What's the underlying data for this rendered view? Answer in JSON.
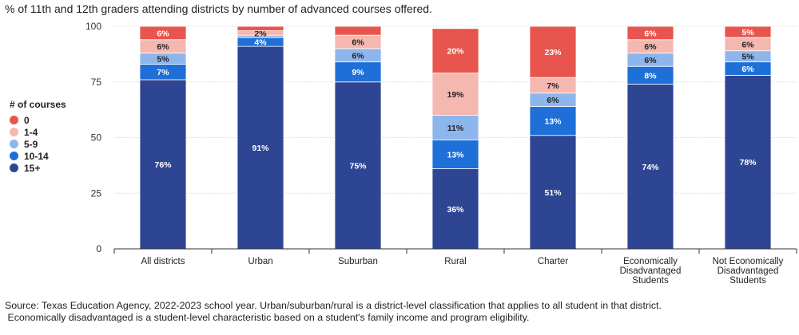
{
  "chart_data": {
    "type": "bar",
    "stacked": true,
    "title": "% of 11th and 12th graders attending districts by number of advanced courses offered.",
    "legend_title": "# of courses",
    "legend_position": "left",
    "ylim": [
      0,
      100
    ],
    "yticks": [
      0,
      25,
      50,
      75,
      100
    ],
    "grid": true,
    "categories": [
      [
        "All districts"
      ],
      [
        "Urban"
      ],
      [
        "Suburban"
      ],
      [
        "Rural"
      ],
      [
        "Charter"
      ],
      [
        "Economically",
        "Disadvantaged",
        "Students"
      ],
      [
        "Not Economically",
        "Disadvantaged",
        "Students"
      ]
    ],
    "series": [
      {
        "name": "15+",
        "color": "#2e4593",
        "values": [
          76,
          91,
          75,
          36,
          51,
          74,
          78
        ],
        "labels": [
          "76%",
          "91%",
          "75%",
          "36%",
          "51%",
          "74%",
          "78%"
        ]
      },
      {
        "name": "10-14",
        "color": "#1f6fd8",
        "values": [
          7,
          4,
          9,
          13,
          13,
          8,
          6
        ],
        "labels": [
          "7%",
          "4%",
          "9%",
          "13%",
          "13%",
          "8%",
          "6%"
        ]
      },
      {
        "name": "5-9",
        "color": "#8db6ec",
        "values": [
          5,
          1,
          6,
          11,
          6,
          6,
          5
        ],
        "labels": [
          "5%",
          "",
          "6%",
          "11%",
          "6%",
          "6%",
          "5%"
        ]
      },
      {
        "name": "1-4",
        "color": "#f4b8b0",
        "values": [
          6,
          2,
          6,
          19,
          7,
          6,
          6
        ],
        "labels": [
          "6%",
          "2%",
          "6%",
          "19%",
          "7%",
          "6%",
          "6%"
        ]
      },
      {
        "name": "0",
        "color": "#e8554e",
        "values": [
          6,
          2,
          4,
          20,
          23,
          6,
          5
        ],
        "labels": [
          "6%",
          "",
          "",
          "20%",
          "23%",
          "6%",
          "5%"
        ]
      }
    ],
    "source": [
      "Source: Texas Education Agency, 2022-2023 school year. Urban/suburban/rural is a district-level classification that applies to all student in that district.",
      " Economically disadvantaged is a student-level characteristic based on a student's family income and program eligibility."
    ]
  }
}
